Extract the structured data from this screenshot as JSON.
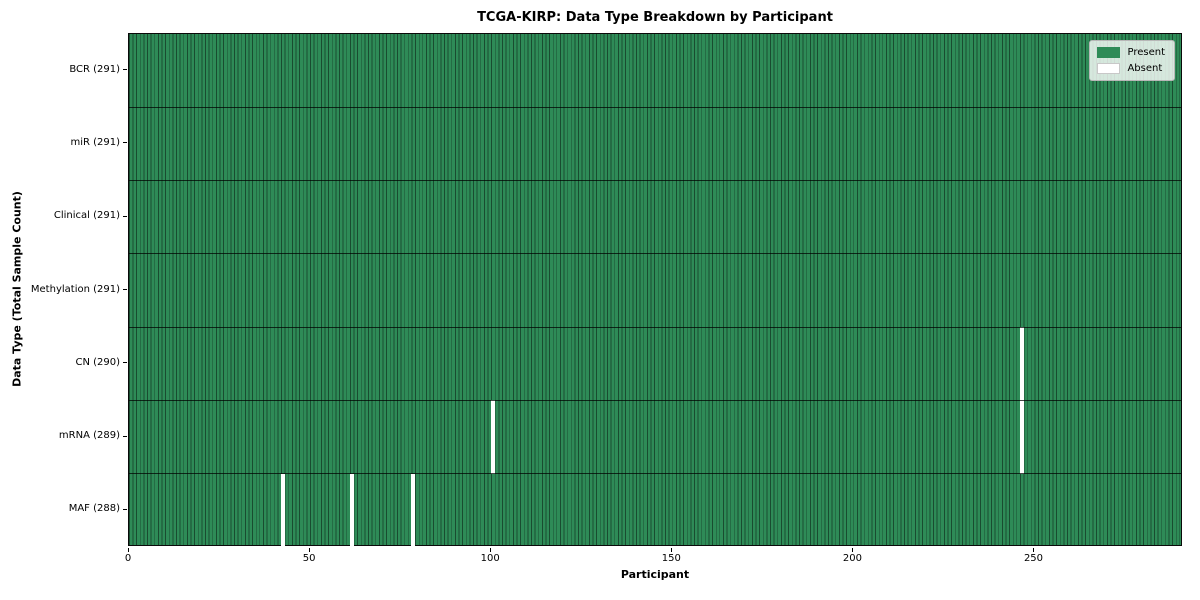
{
  "chart_data": {
    "type": "heatmap",
    "title": "TCGA-KIRP: Data Type Breakdown by Participant",
    "xlabel": "Participant",
    "ylabel": "Data Type (Total Sample Count)",
    "x_range": [
      0,
      291
    ],
    "n_participants": 291,
    "x_ticks": [
      0,
      50,
      100,
      150,
      200,
      250
    ],
    "rows": [
      {
        "label": "BCR (291)",
        "data_type": "BCR",
        "present_count": 291,
        "absent_participants": []
      },
      {
        "label": "miR (291)",
        "data_type": "miR",
        "present_count": 291,
        "absent_participants": []
      },
      {
        "label": "Clinical (291)",
        "data_type": "Clinical",
        "present_count": 291,
        "absent_participants": []
      },
      {
        "label": "Methylation (291)",
        "data_type": "Methylation",
        "present_count": 291,
        "absent_participants": []
      },
      {
        "label": "CN (290)",
        "data_type": "CN",
        "present_count": 290,
        "absent_participants": [
          246
        ]
      },
      {
        "label": "mRNA (289)",
        "data_type": "mRNA",
        "present_count": 289,
        "absent_participants": [
          100,
          246
        ]
      },
      {
        "label": "MAF (288)",
        "data_type": "MAF",
        "present_count": 288,
        "absent_participants": [
          42,
          61,
          78
        ]
      }
    ],
    "legend": [
      {
        "label": "Present",
        "color": "#2e8b57"
      },
      {
        "label": "Absent",
        "color": "#ffffff"
      }
    ],
    "colors": {
      "present": "#2e8b57",
      "absent": "#ffffff",
      "cell_edge": "#26553f",
      "row_divider": "#1c1c1c",
      "frame": "#0a0a0a"
    },
    "grid": "row-dividers-on",
    "legend_position": "upper-right-inside"
  }
}
